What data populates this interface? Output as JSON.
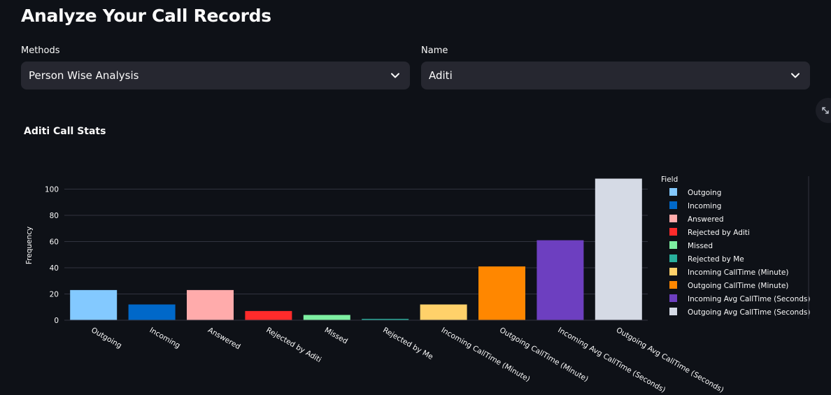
{
  "title": "Analyze Your Call Records",
  "methods": {
    "label": "Methods",
    "value": "Person Wise Analysis"
  },
  "name": {
    "label": "Name",
    "value": "Aditi"
  },
  "chart_data": {
    "type": "bar",
    "title": "Aditi Call Stats",
    "xlabel": "",
    "ylabel": "Frequency",
    "ylim": [
      0,
      110
    ],
    "yticks": [
      0,
      20,
      40,
      60,
      80,
      100
    ],
    "grid": true,
    "legend_title": "Field",
    "legend_position": "right",
    "categories": [
      "Outgoing",
      "Incoming",
      "Answered",
      "Rejected by Aditi",
      "Missed",
      "Rejected by Me",
      "Incoming CallTime (Minute)",
      "Outgoing CallTime (Minute)",
      "Incoming Avg CallTime (Seconds)",
      "Outgoing Avg CallTime (Seconds)"
    ],
    "values": [
      23,
      12,
      23,
      7,
      4,
      1,
      12,
      41,
      61,
      108
    ],
    "colors": [
      "#83c9ff",
      "#0068c9",
      "#ffabab",
      "#ff2b2b",
      "#7defa1",
      "#29b09d",
      "#ffd16a",
      "#ff8700",
      "#6d3fc0",
      "#d5dae5"
    ]
  }
}
